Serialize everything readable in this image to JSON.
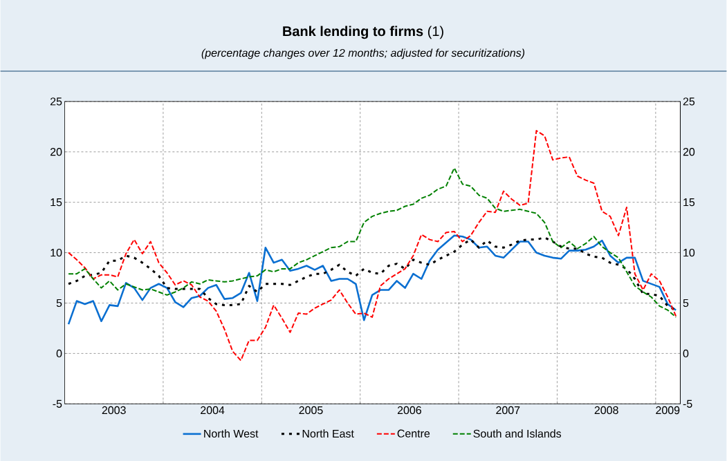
{
  "chart_data": {
    "type": "line",
    "title": "**Bank lending to firms** (1)",
    "subtitle": "(percentage changes over 12 months; adjusted for securitizations)",
    "x": [
      "2003-01-15",
      "2003-02-15",
      "2003-03-15",
      "2003-04-15",
      "2003-05-15",
      "2003-06-15",
      "2003-07-15",
      "2003-08-15",
      "2003-09-15",
      "2003-10-15",
      "2003-11-15",
      "2003-12-15",
      "2004-01-15",
      "2004-02-15",
      "2004-03-15",
      "2004-04-15",
      "2004-05-15",
      "2004-06-15",
      "2004-07-15",
      "2004-08-15",
      "2004-09-15",
      "2004-10-15",
      "2004-11-15",
      "2004-12-15",
      "2005-01-15",
      "2005-02-15",
      "2005-03-15",
      "2005-04-15",
      "2005-05-15",
      "2005-06-15",
      "2005-07-15",
      "2005-08-15",
      "2005-09-15",
      "2005-10-15",
      "2005-11-15",
      "2005-12-15",
      "2006-01-15",
      "2006-02-15",
      "2006-03-15",
      "2006-04-15",
      "2006-05-15",
      "2006-06-15",
      "2006-07-15",
      "2006-08-15",
      "2006-09-15",
      "2006-10-15",
      "2006-11-15",
      "2006-12-15",
      "2007-01-15",
      "2007-02-15",
      "2007-03-15",
      "2007-04-15",
      "2007-05-15",
      "2007-06-15",
      "2007-07-15",
      "2007-08-15",
      "2007-09-15",
      "2007-10-15",
      "2007-11-15",
      "2007-12-15",
      "2008-01-15",
      "2008-02-15",
      "2008-03-15",
      "2008-04-15",
      "2008-05-15",
      "2008-06-15",
      "2008-07-15",
      "2008-08-15",
      "2008-09-15",
      "2008-10-15",
      "2008-11-15",
      "2008-12-15",
      "2009-01-15",
      "2009-02-15",
      "2009-03-15"
    ],
    "series": [
      {
        "name": "North West",
        "color": "#0a6fd1",
        "line_style": "solid",
        "values": [
          2.9,
          5.2,
          4.9,
          5.2,
          3.2,
          4.8,
          4.7,
          7.0,
          6.5,
          5.3,
          6.5,
          6.9,
          6.5,
          5.1,
          4.6,
          5.5,
          5.7,
          6.5,
          6.8,
          5.4,
          5.5,
          6.0,
          8.0,
          5.2,
          10.5,
          9.0,
          9.3,
          8.2,
          8.4,
          8.7,
          8.3,
          8.7,
          7.2,
          7.4,
          7.4,
          6.9,
          3.3,
          5.8,
          6.3,
          6.3,
          7.2,
          6.5,
          7.9,
          7.4,
          9.2,
          10.3,
          11.0,
          11.7,
          11.6,
          11.3,
          10.5,
          10.6,
          9.7,
          9.5,
          10.3,
          11.1,
          11.1,
          10.0,
          9.7,
          9.5,
          9.4,
          10.2,
          10.2,
          10.3,
          10.6,
          11.2,
          9.7,
          9.0,
          9.5,
          9.5,
          7.2,
          6.9,
          6.6,
          4.9,
          4.3
        ]
      },
      {
        "name": "North East",
        "color": "#000000",
        "line_style": "dotted",
        "values": [
          6.9,
          7.2,
          7.7,
          7.8,
          8.0,
          9.2,
          9.2,
          9.7,
          9.5,
          9.0,
          8.4,
          7.7,
          6.5,
          6.4,
          6.4,
          6.4,
          6.4,
          5.5,
          4.9,
          4.8,
          4.8,
          4.9,
          6.7,
          6.1,
          6.9,
          6.9,
          6.9,
          6.8,
          7.2,
          7.6,
          7.9,
          7.9,
          8.3,
          8.8,
          8.1,
          7.7,
          8.4,
          8.0,
          7.9,
          8.7,
          8.9,
          8.4,
          9.3,
          9.0,
          8.8,
          9.3,
          9.7,
          10.1,
          10.8,
          11.3,
          10.5,
          11.2,
          10.6,
          10.5,
          10.8,
          11.2,
          11.3,
          11.3,
          11.5,
          11.1,
          10.6,
          10.4,
          10.4,
          9.9,
          9.6,
          9.5,
          9.0,
          8.8,
          8.4,
          7.4,
          5.9,
          5.9,
          5.7,
          4.7,
          4.3
        ]
      },
      {
        "name": "Centre",
        "color": "#ff0000",
        "line_style": "dashed",
        "values": [
          10.0,
          9.3,
          8.5,
          7.4,
          7.8,
          7.8,
          7.6,
          9.9,
          11.3,
          9.9,
          11.1,
          9.0,
          8.0,
          6.8,
          7.2,
          6.8,
          5.6,
          5.2,
          4.2,
          2.4,
          0.2,
          -0.7,
          1.3,
          1.3,
          2.6,
          4.8,
          3.5,
          2.1,
          4.0,
          3.9,
          4.5,
          4.9,
          5.3,
          6.3,
          5.0,
          3.9,
          4.0,
          3.6,
          6.7,
          7.4,
          7.9,
          8.4,
          9.7,
          11.8,
          11.3,
          11.1,
          12.0,
          12.1,
          11.1,
          11.7,
          13.0,
          14.1,
          14.0,
          16.1,
          15.3,
          14.7,
          14.9,
          22.1,
          21.6,
          19.2,
          19.4,
          19.5,
          17.6,
          17.2,
          16.9,
          14.1,
          13.6,
          11.7,
          14.5,
          7.9,
          6.3,
          7.9,
          7.2,
          5.6,
          3.7
        ]
      },
      {
        "name": "South and Islands",
        "color": "#008000",
        "line_style": "dashed",
        "values": [
          7.9,
          7.9,
          8.4,
          7.4,
          6.5,
          7.2,
          6.3,
          6.9,
          6.6,
          6.3,
          6.4,
          6.1,
          5.8,
          6.1,
          6.5,
          7.1,
          6.9,
          7.3,
          7.2,
          7.1,
          7.2,
          7.4,
          7.6,
          7.7,
          8.3,
          8.1,
          8.4,
          8.4,
          9.0,
          9.3,
          9.7,
          10.1,
          10.5,
          10.6,
          11.1,
          11.1,
          13.0,
          13.6,
          13.9,
          14.1,
          14.2,
          14.6,
          14.8,
          15.4,
          15.7,
          16.3,
          16.6,
          18.4,
          16.8,
          16.6,
          15.7,
          15.4,
          14.4,
          14.1,
          14.2,
          14.3,
          14.1,
          13.9,
          13.0,
          11.1,
          10.5,
          11.1,
          10.4,
          10.9,
          11.6,
          10.6,
          10.0,
          9.5,
          8.1,
          6.7,
          6.1,
          5.6,
          4.7,
          4.3,
          3.6
        ]
      }
    ],
    "xlim": [
      "2003-01-01",
      "2009-04-01"
    ],
    "xticks": [
      {
        "value": "2003-07-01",
        "label": "2003"
      },
      {
        "value": "2004-01-01",
        "label": null
      },
      {
        "value": "2004-07-01",
        "label": "2004"
      },
      {
        "value": "2005-01-01",
        "label": null
      },
      {
        "value": "2005-07-01",
        "label": "2005"
      },
      {
        "value": "2006-01-01",
        "label": null
      },
      {
        "value": "2006-07-01",
        "label": "2006"
      },
      {
        "value": "2007-01-01",
        "label": null
      },
      {
        "value": "2007-07-01",
        "label": "2007"
      },
      {
        "value": "2008-01-01",
        "label": null
      },
      {
        "value": "2008-07-01",
        "label": "2008"
      },
      {
        "value": "2009-01-01",
        "label": null
      },
      {
        "value": "2009-02-15",
        "label": "2009"
      }
    ],
    "ylim": [
      -5,
      25
    ],
    "yticks": [
      -5,
      0,
      5,
      10,
      15,
      20,
      25
    ],
    "y2lim": [
      -5,
      25
    ],
    "y2ticks": [
      -5,
      0,
      5,
      10,
      15,
      20,
      25
    ],
    "grid": true,
    "legend": "bottom",
    "marker": "none"
  }
}
